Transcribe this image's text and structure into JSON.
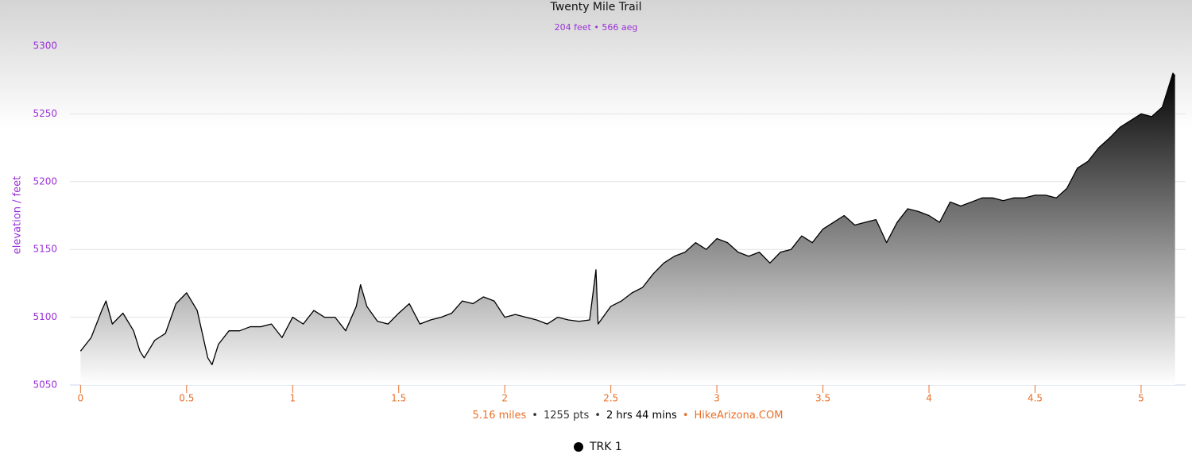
{
  "chart_data": {
    "type": "area",
    "title": "Twenty Mile Trail",
    "subtitle": "204 feet • 566 aeg",
    "y_label": "elevation / feet",
    "x": [
      0,
      0.05,
      0.1,
      0.12,
      0.15,
      0.2,
      0.25,
      0.28,
      0.3,
      0.35,
      0.4,
      0.45,
      0.5,
      0.55,
      0.6,
      0.62,
      0.65,
      0.7,
      0.75,
      0.8,
      0.85,
      0.9,
      0.95,
      1.0,
      1.05,
      1.1,
      1.15,
      1.2,
      1.25,
      1.3,
      1.32,
      1.35,
      1.4,
      1.45,
      1.5,
      1.55,
      1.6,
      1.65,
      1.7,
      1.75,
      1.8,
      1.85,
      1.9,
      1.95,
      2.0,
      2.05,
      2.1,
      2.15,
      2.2,
      2.25,
      2.3,
      2.35,
      2.4,
      2.43,
      2.44,
      2.5,
      2.55,
      2.6,
      2.65,
      2.7,
      2.75,
      2.8,
      2.85,
      2.9,
      2.95,
      3.0,
      3.05,
      3.1,
      3.15,
      3.2,
      3.25,
      3.3,
      3.35,
      3.4,
      3.45,
      3.5,
      3.55,
      3.6,
      3.65,
      3.7,
      3.75,
      3.8,
      3.85,
      3.9,
      3.95,
      4.0,
      4.05,
      4.1,
      4.15,
      4.2,
      4.25,
      4.3,
      4.35,
      4.4,
      4.45,
      4.5,
      4.55,
      4.6,
      4.65,
      4.7,
      4.75,
      4.8,
      4.85,
      4.9,
      4.95,
      5.0,
      5.05,
      5.1,
      5.15,
      5.16
    ],
    "series": [
      {
        "name": "TRK 1",
        "color": "#000000",
        "values": [
          5075,
          5085,
          5105,
          5112,
          5095,
          5103,
          5090,
          5075,
          5070,
          5083,
          5088,
          5110,
          5118,
          5105,
          5070,
          5065,
          5080,
          5090,
          5090,
          5093,
          5093,
          5095,
          5085,
          5100,
          5095,
          5105,
          5100,
          5100,
          5090,
          5108,
          5124,
          5108,
          5097,
          5095,
          5103,
          5110,
          5095,
          5098,
          5100,
          5103,
          5112,
          5110,
          5115,
          5112,
          5100,
          5102,
          5100,
          5098,
          5095,
          5100,
          5098,
          5097,
          5098,
          5135,
          5095,
          5108,
          5112,
          5118,
          5122,
          5132,
          5140,
          5145,
          5148,
          5155,
          5150,
          5158,
          5155,
          5148,
          5145,
          5148,
          5140,
          5148,
          5150,
          5160,
          5155,
          5165,
          5170,
          5175,
          5168,
          5170,
          5172,
          5155,
          5170,
          5180,
          5178,
          5175,
          5170,
          5185,
          5182,
          5185,
          5188,
          5188,
          5186,
          5188,
          5188,
          5190,
          5190,
          5188,
          5195,
          5210,
          5215,
          5225,
          5232,
          5240,
          5245,
          5250,
          5248,
          5255,
          5280,
          5278
        ]
      }
    ],
    "xlim": [
      -0.05,
      5.21
    ],
    "ylim": [
      5050,
      5300
    ],
    "xticks": [
      0,
      0.5,
      1,
      1.5,
      2,
      2.5,
      3,
      3.5,
      4,
      4.5,
      5
    ],
    "yticks": [
      5050,
      5100,
      5150,
      5200,
      5250,
      5300
    ],
    "grid": true,
    "axis_color_x": "#e8702a",
    "axis_color_y": "#9b30d9",
    "footer": [
      {
        "text": "5.16 miles",
        "color": "#e8702a"
      },
      {
        "text": "•",
        "color": "#333333"
      },
      {
        "text": "1255 pts",
        "color": "#333333"
      },
      {
        "text": "•",
        "color": "#333333"
      },
      {
        "text": "2 hrs 44 mins",
        "color": "#000000"
      },
      {
        "text": "•",
        "color": "#e8702a"
      },
      {
        "text": "HikeArizona.COM",
        "color": "#e8702a"
      }
    ]
  }
}
